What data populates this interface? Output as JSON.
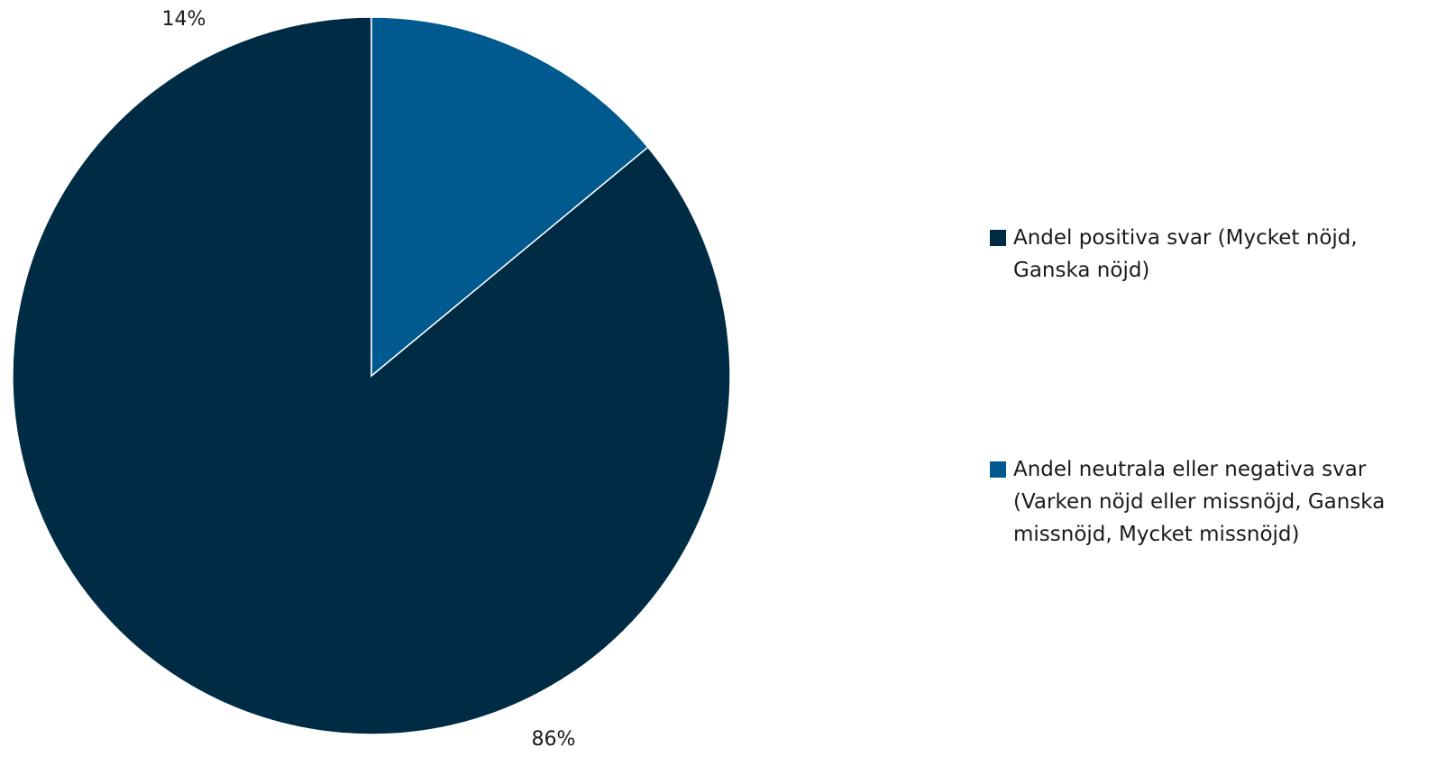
{
  "chart_data": {
    "type": "pie",
    "title": "",
    "start_angle_deg": 0,
    "direction": "counterclockwise",
    "slices": [
      {
        "name": "Andel positiva svar (Mycket nöjd, Ganska nöjd)",
        "value": 86,
        "label": "86%",
        "color": "#002b45"
      },
      {
        "name": "Andel neutrala eller negativa svar (Varken nöjd eller missnöjd, Ganska missnöjd, Mycket missnöjd)",
        "value": 14,
        "label": "14%",
        "color": "#005a8f"
      }
    ],
    "legend": {
      "position": "right",
      "items": [
        {
          "label": "Andel positiva svar (Mycket nöjd, Ganska nöjd)",
          "color": "#002b45"
        },
        {
          "label": "Andel neutrala eller negativa svar (Varken nöjd eller missnöjd, Ganska missnöjd, Mycket missnöjd)",
          "color": "#005a8f"
        }
      ]
    }
  }
}
